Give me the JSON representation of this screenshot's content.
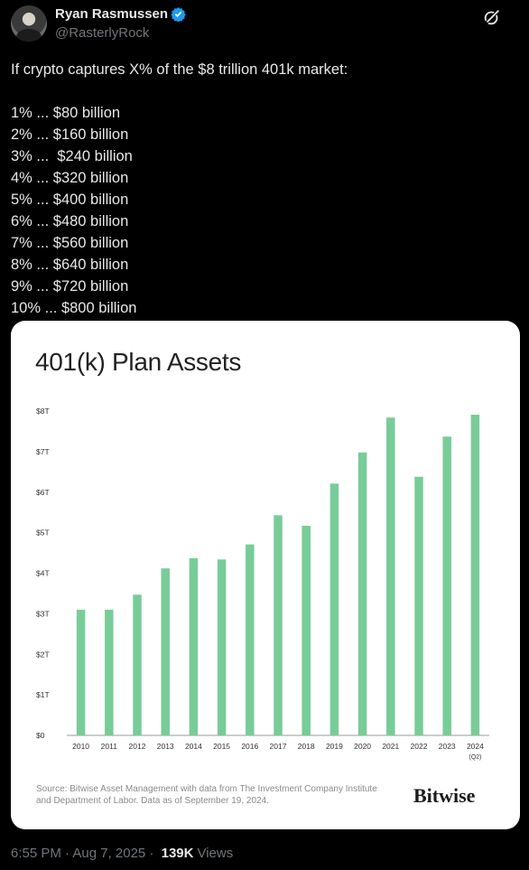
{
  "tweet": {
    "display_name": "Ryan Rasmussen",
    "handle": "@RasterlyRock",
    "verified_icon": "verified-badge-icon",
    "lines": [
      "If crypto captures X% of the $8 trillion 401k market:",
      "",
      "1% ... $80 billion",
      "2% ... $160 billion",
      "3% ...  $240 billion",
      "4% ... $320 billion",
      "5% ... $400 billion",
      "6% ... $480 billion",
      "7% ... $560 billion",
      "8% ... $640 billion",
      "9% ... $720 billion",
      "10% ... $800 billion"
    ]
  },
  "card": {
    "source": "Source: Bitwise Asset Management with data from The Investment Company Institute and Department of Labor. Data as of September 19, 2024.",
    "brand": "Bitwise"
  },
  "chart_data": {
    "type": "bar",
    "title": "401(k) Plan Assets",
    "categories": [
      "2010",
      "2011",
      "2012",
      "2013",
      "2014",
      "2015",
      "2016",
      "2017",
      "2018",
      "2019",
      "2020",
      "2021",
      "2022",
      "2023",
      "2024"
    ],
    "category_sublabels": {
      "2024": "(Q2)"
    },
    "values": [
      3.1,
      3.1,
      3.47,
      4.12,
      4.37,
      4.34,
      4.71,
      5.43,
      5.17,
      6.21,
      6.98,
      7.84,
      6.38,
      7.37,
      7.91
    ],
    "yticks": [
      "$0",
      "$1T",
      "$2T",
      "$3T",
      "$4T",
      "$5T",
      "$6T",
      "$7T",
      "$8T"
    ],
    "ylim": [
      0,
      8
    ],
    "bar_color": "#78cc98",
    "grid": false
  },
  "footer": {
    "time": "6:55 PM · Aug 7, 2025 · ",
    "views_num": "139K",
    "views_label": "Views"
  }
}
